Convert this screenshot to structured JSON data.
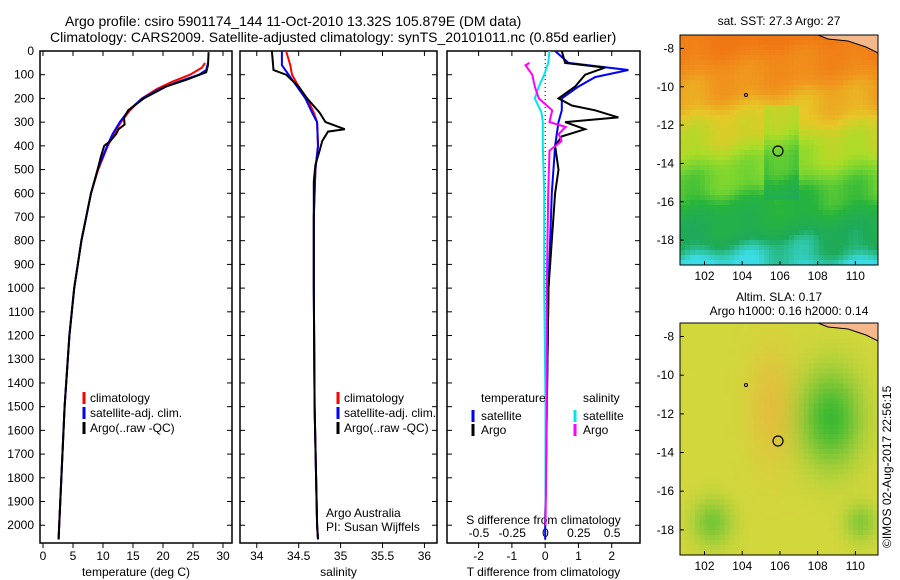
{
  "title_line1": "Argo profile: csiro 5901174_144 11-Oct-2010 13.32S 105.879E (DM data)",
  "title_line2": "Climatology: CARS2009. Satellite-adjusted climatology: synTS_20101011.nc (0.85d earlier)",
  "colors": {
    "climatology": "#ff0000",
    "satellite": "#0000ff",
    "argo": "#000000",
    "sal_satellite": "#00e5ee",
    "sal_argo": "#ff00ff"
  },
  "depth_ticks": [
    0,
    100,
    200,
    300,
    400,
    500,
    600,
    700,
    800,
    900,
    1000,
    1100,
    1200,
    1300,
    1400,
    1500,
    1600,
    1700,
    1800,
    1900,
    2000
  ],
  "chart_data": [
    {
      "type": "line",
      "xlabel": "temperature (deg C)",
      "ylabel": "depth",
      "xlim": [
        -0.5,
        31.5
      ],
      "ylim": [
        2075,
        0
      ],
      "xticks": [
        0,
        5,
        10,
        15,
        20,
        25,
        30
      ],
      "legend": [
        "climatology",
        "satellite-adj. clim.",
        "Argo(..raw -QC)"
      ],
      "series": [
        {
          "name": "climatology",
          "depth": [
            50,
            70,
            100,
            130,
            160,
            200,
            250,
            300,
            350,
            400,
            500,
            600,
            800,
            1000,
            1200,
            1500,
            2000,
            2060
          ],
          "values": [
            27.0,
            26.5,
            24.5,
            21.5,
            19,
            16.5,
            14.5,
            13,
            11.8,
            10.8,
            9.2,
            8,
            6.4,
            5.2,
            4.4,
            3.6,
            2.7,
            2.6
          ]
        },
        {
          "name": "satellite-adj. clim.",
          "depth": [
            50,
            80,
            100,
            130,
            160,
            200,
            250,
            300,
            350,
            400,
            500,
            600,
            800,
            1000,
            1200,
            1500,
            2000,
            2060
          ],
          "values": [
            27.5,
            27.2,
            26,
            22.5,
            19.5,
            16.5,
            14.3,
            12.8,
            11.6,
            10.7,
            9.1,
            8,
            6.4,
            5.2,
            4.4,
            3.6,
            2.7,
            2.6
          ]
        },
        {
          "name": "Argo(..raw -QC)",
          "depth": [
            5,
            60,
            90,
            120,
            150,
            200,
            250,
            280,
            310,
            330,
            350,
            380,
            400,
            450,
            500,
            600,
            800,
            1000,
            1200,
            1500,
            2000,
            2060
          ],
          "values": [
            27.6,
            27.5,
            27.2,
            24,
            20.5,
            16.8,
            14.2,
            13.5,
            13.6,
            12.6,
            12.2,
            11.2,
            10.2,
            9.6,
            9.1,
            8,
            6.4,
            5.2,
            4.4,
            3.6,
            2.7,
            2.6
          ]
        }
      ]
    },
    {
      "type": "line",
      "xlabel": "salinity",
      "xlim": [
        33.8,
        36.15
      ],
      "ylim": [
        2075,
        0
      ],
      "xticks": [
        34,
        34.5,
        35,
        35.5,
        36
      ],
      "legend": [
        "climatology",
        "satellite-adj. clim.",
        "Argo(..raw -QC)"
      ],
      "annotation": [
        "Argo Australia",
        "PI: Susan Wijffels"
      ],
      "series": [
        {
          "name": "climatology",
          "depth": [
            0,
            60,
            100,
            150,
            200,
            260,
            300,
            400,
            500,
            700,
            1000,
            1500,
            2000,
            2060
          ],
          "values": [
            34.35,
            34.4,
            34.42,
            34.5,
            34.6,
            34.68,
            34.72,
            34.73,
            34.7,
            34.68,
            34.68,
            34.69,
            34.72,
            34.73
          ]
        },
        {
          "name": "satellite-adj. clim.",
          "depth": [
            0,
            60,
            100,
            150,
            200,
            260,
            300,
            400,
            500,
            700,
            1000,
            1500,
            2000,
            2060
          ],
          "values": [
            34.3,
            34.3,
            34.38,
            34.48,
            34.58,
            34.66,
            34.72,
            34.73,
            34.7,
            34.68,
            34.68,
            34.69,
            34.72,
            34.73
          ]
        },
        {
          "name": "Argo(..raw -QC)",
          "depth": [
            0,
            80,
            100,
            150,
            200,
            260,
            300,
            330,
            340,
            380,
            420,
            480,
            550,
            700,
            1000,
            1500,
            2000,
            2060
          ],
          "values": [
            34.18,
            34.2,
            34.35,
            34.5,
            34.6,
            34.75,
            34.82,
            35.05,
            34.85,
            34.78,
            34.75,
            34.7,
            34.68,
            34.68,
            34.68,
            34.69,
            34.72,
            34.73
          ]
        }
      ]
    },
    {
      "type": "line",
      "xlabel": "T difference from climatology",
      "xlabel2": "S difference from climatology",
      "xlim": [
        -2.95,
        2.85
      ],
      "xlim2": [
        -0.74,
        0.71
      ],
      "ylim": [
        2075,
        0
      ],
      "xticks": [
        -2,
        -1,
        0,
        1,
        2
      ],
      "xticks2": [
        -0.5,
        -0.25,
        0,
        0.25,
        0.5
      ],
      "legend_titles": [
        "temperature",
        "salinity"
      ],
      "legend": [
        "satellite",
        "Argo",
        "satellite",
        "Argo"
      ],
      "series": [
        {
          "name": "temperature satellite",
          "depth": [
            0,
            50,
            80,
            110,
            150,
            200,
            250,
            300,
            400,
            600,
            1000,
            1500,
            2000,
            2060
          ],
          "values": [
            0.3,
            0.7,
            2.5,
            1.5,
            1.0,
            0.5,
            0.5,
            0.4,
            0.3,
            0.2,
            0.1,
            0.05,
            0,
            0
          ]
        },
        {
          "name": "temperature Argo",
          "depth": [
            0,
            50,
            70,
            100,
            150,
            200,
            230,
            250,
            280,
            300,
            330,
            360,
            400,
            500,
            600,
            800,
            1000,
            1500,
            2000
          ],
          "values": [
            0.5,
            0.6,
            1.8,
            1.2,
            0.9,
            0.4,
            0.8,
            1.5,
            2.2,
            0.6,
            1.2,
            0.5,
            0.3,
            0.4,
            0.3,
            0.2,
            0.1,
            0.05,
            0
          ]
        },
        {
          "name": "salinity satellite",
          "depth": [
            0,
            50,
            100,
            150,
            200,
            260,
            300,
            400,
            600,
            1000,
            1500,
            2000
          ],
          "values": [
            0.03,
            0.02,
            -0.01,
            -0.05,
            -0.08,
            -0.03,
            -0.02,
            -0.02,
            -0.01,
            -0.01,
            0,
            0
          ]
        },
        {
          "name": "salinity Argo",
          "depth": [
            50,
            60,
            100,
            150,
            200,
            250,
            300,
            320,
            350,
            380,
            420,
            600,
            1000,
            1500,
            2000
          ],
          "values": [
            -0.12,
            -0.15,
            -0.1,
            -0.08,
            -0.05,
            0.05,
            0.03,
            0.15,
            0.1,
            0.12,
            0.03,
            0.02,
            0.01,
            0.01,
            0
          ]
        }
      ]
    }
  ],
  "maps": [
    {
      "title": "sat. SST: 27.3 Argo: 27",
      "yticks": [
        -8,
        -10,
        -12,
        -14,
        -16,
        -18
      ],
      "xticks": [
        102,
        104,
        106,
        108,
        110
      ],
      "field": "sst"
    },
    {
      "title": "Altim. SLA: 0.17",
      "subtitle": "Argo h1000: 0.16 h2000: 0.14",
      "yticks": [
        -8,
        -10,
        -12,
        -14,
        -16,
        -18
      ],
      "xticks": [
        102,
        104,
        106,
        108,
        110
      ],
      "field": "sla"
    }
  ],
  "stamp": "©IMOS 02-Aug-2017 22:56:15"
}
